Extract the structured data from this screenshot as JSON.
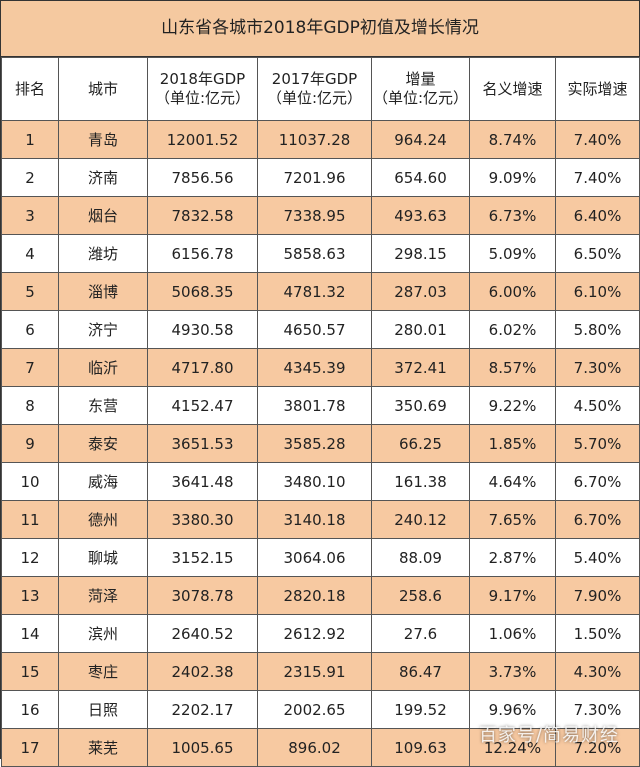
{
  "title": "山东省各城市2018年GDP初值及增长情况",
  "headers": [
    {
      "line1": "排名",
      "line2": ""
    },
    {
      "line1": "城市",
      "line2": ""
    },
    {
      "line1": "2018年GDP",
      "line2": "（单位:亿元）"
    },
    {
      "line1": "2017年GDP",
      "line2": "（单位:亿元）"
    },
    {
      "line1": "增量",
      "line2": "（单位:亿元）"
    },
    {
      "line1": "名义增速",
      "line2": ""
    },
    {
      "line1": "实际增速",
      "line2": ""
    }
  ],
  "rows": [
    [
      "1",
      "青岛",
      "12001.52",
      "11037.28",
      "964.24",
      "8.74%",
      "7.40%"
    ],
    [
      "2",
      "济南",
      "7856.56",
      "7201.96",
      "654.60",
      "9.09%",
      "7.40%"
    ],
    [
      "3",
      "烟台",
      "7832.58",
      "7338.95",
      "493.63",
      "6.73%",
      "6.40%"
    ],
    [
      "4",
      "潍坊",
      "6156.78",
      "5858.63",
      "298.15",
      "5.09%",
      "6.50%"
    ],
    [
      "5",
      "淄博",
      "5068.35",
      "4781.32",
      "287.03",
      "6.00%",
      "6.10%"
    ],
    [
      "6",
      "济宁",
      "4930.58",
      "4650.57",
      "280.01",
      "6.02%",
      "5.80%"
    ],
    [
      "7",
      "临沂",
      "4717.80",
      "4345.39",
      "372.41",
      "8.57%",
      "7.30%"
    ],
    [
      "8",
      "东营",
      "4152.47",
      "3801.78",
      "350.69",
      "9.22%",
      "4.50%"
    ],
    [
      "9",
      "泰安",
      "3651.53",
      "3585.28",
      "66.25",
      "1.85%",
      "5.70%"
    ],
    [
      "10",
      "威海",
      "3641.48",
      "3480.10",
      "161.38",
      "4.64%",
      "6.70%"
    ],
    [
      "11",
      "德州",
      "3380.30",
      "3140.18",
      "240.12",
      "7.65%",
      "6.70%"
    ],
    [
      "12",
      "聊城",
      "3152.15",
      "3064.06",
      "88.09",
      "2.87%",
      "5.40%"
    ],
    [
      "13",
      "菏泽",
      "3078.78",
      "2820.18",
      "258.6",
      "9.17%",
      "7.90%"
    ],
    [
      "14",
      "滨州",
      "2640.52",
      "2612.92",
      "27.6",
      "1.06%",
      "1.50%"
    ],
    [
      "15",
      "枣庄",
      "2402.38",
      "2315.91",
      "86.47",
      "3.73%",
      "4.30%"
    ],
    [
      "16",
      "日照",
      "2202.17",
      "2002.65",
      "199.52",
      "9.96%",
      "7.30%"
    ],
    [
      "17",
      "莱芜",
      "1005.65",
      "896.02",
      "109.63",
      "12.24%",
      "7.20%"
    ]
  ],
  "watermark": "百家号/简易财经"
}
